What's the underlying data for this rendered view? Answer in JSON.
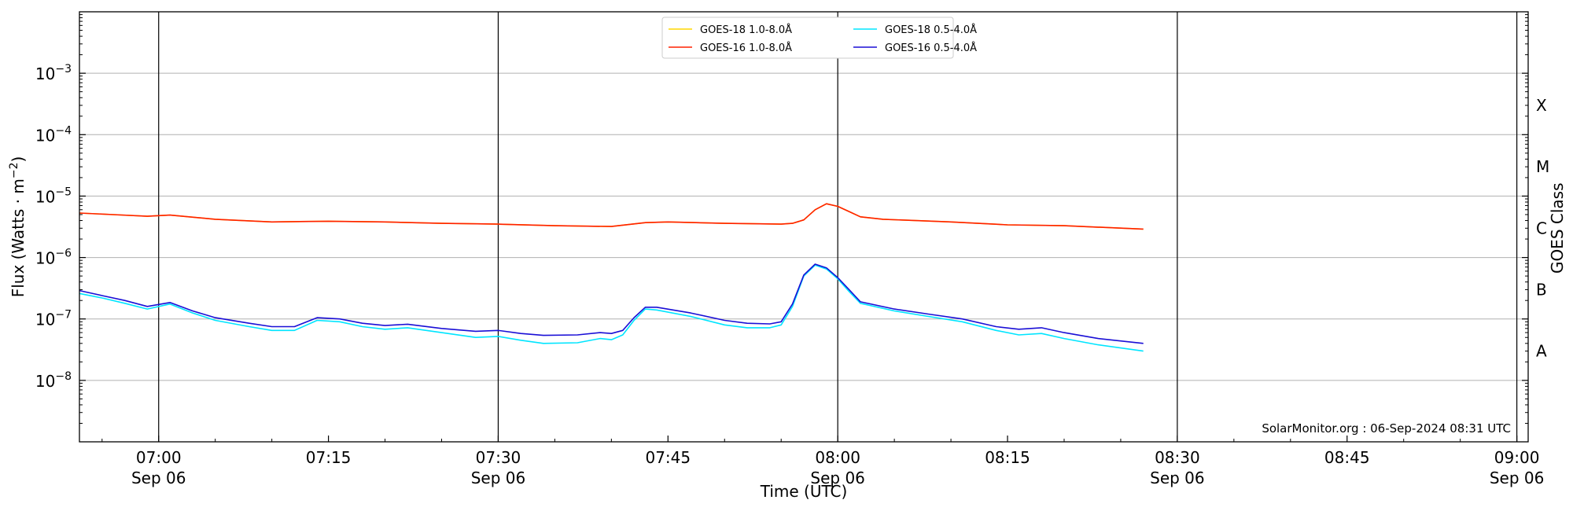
{
  "chart_data": {
    "type": "line",
    "title": "",
    "xlabel": "Time (UTC)",
    "ylabel": "Flux (Watts · m",
    "ylabel_sup": "−2",
    "ylabel_close": ")",
    "right_label": "GOES Class",
    "credit": "SolarMonitor.org : 06-Sep-2024 08:31 UTC",
    "log_y": true,
    "xlim": [
      "06:53",
      "09:01"
    ],
    "ylim": [
      1e-09,
      0.01
    ],
    "grid": "horizontal at decades",
    "legend_position": "top-center",
    "x_ticks": [
      {
        "time": "07:00",
        "label": "07:00",
        "sub": "Sep 06"
      },
      {
        "time": "07:15",
        "label": "07:15",
        "sub": ""
      },
      {
        "time": "07:30",
        "label": "07:30",
        "sub": "Sep 06"
      },
      {
        "time": "07:45",
        "label": "07:45",
        "sub": ""
      },
      {
        "time": "08:00",
        "label": "08:00",
        "sub": "Sep 06"
      },
      {
        "time": "08:15",
        "label": "08:15",
        "sub": ""
      },
      {
        "time": "08:30",
        "label": "08:30",
        "sub": "Sep 06"
      },
      {
        "time": "08:45",
        "label": "08:45",
        "sub": ""
      },
      {
        "time": "09:00",
        "label": "09:00",
        "sub": "Sep 06"
      }
    ],
    "vertical_lines": [
      "07:00",
      "07:30",
      "08:00",
      "08:30",
      "09:00"
    ],
    "y_ticks": [
      {
        "value": 1e-08,
        "base": "10",
        "exp": "−8"
      },
      {
        "value": 1e-07,
        "base": "10",
        "exp": "−7"
      },
      {
        "value": 1e-06,
        "base": "10",
        "exp": "−6"
      },
      {
        "value": 1e-05,
        "base": "10",
        "exp": "−5"
      },
      {
        "value": 0.0001,
        "base": "10",
        "exp": "−4"
      },
      {
        "value": 0.001,
        "base": "10",
        "exp": "−3"
      }
    ],
    "goes_classes": [
      {
        "label": "A",
        "value": 3e-08
      },
      {
        "label": "B",
        "value": 3e-07
      },
      {
        "label": "C",
        "value": 3e-06
      },
      {
        "label": "M",
        "value": 3e-05
      },
      {
        "label": "X",
        "value": 0.0003
      }
    ],
    "series": [
      {
        "name": "GOES-18 1.0-8.0Å",
        "color": "#ffd700",
        "points": [
          [
            "06:53",
            5.3e-06
          ],
          [
            "06:56",
            5e-06
          ],
          [
            "06:59",
            4.7e-06
          ],
          [
            "07:01",
            4.9e-06
          ],
          [
            "07:05",
            4.2e-06
          ],
          [
            "07:10",
            3.8e-06
          ],
          [
            "07:15",
            3.9e-06
          ],
          [
            "07:20",
            3.8e-06
          ],
          [
            "07:25",
            3.6e-06
          ],
          [
            "07:30",
            3.5e-06
          ],
          [
            "07:35",
            3.3e-06
          ],
          [
            "07:40",
            3.2e-06
          ],
          [
            "07:43",
            3.7e-06
          ],
          [
            "07:45",
            3.8e-06
          ],
          [
            "07:50",
            3.6e-06
          ],
          [
            "07:55",
            3.5e-06
          ],
          [
            "07:56",
            3.6e-06
          ],
          [
            "07:57",
            4.1e-06
          ],
          [
            "07:58",
            6e-06
          ],
          [
            "07:59",
            7.5e-06
          ],
          [
            "08:00",
            6.8e-06
          ],
          [
            "08:01",
            5.6e-06
          ],
          [
            "08:02",
            4.6e-06
          ],
          [
            "08:04",
            4.2e-06
          ],
          [
            "08:10",
            3.8e-06
          ],
          [
            "08:15",
            3.4e-06
          ],
          [
            "08:20",
            3.3e-06
          ],
          [
            "08:27",
            2.9e-06
          ]
        ]
      },
      {
        "name": "GOES-16 1.0-8.0Å",
        "color": "#ff2000",
        "points": [
          [
            "06:53",
            5.3e-06
          ],
          [
            "06:56",
            5e-06
          ],
          [
            "06:59",
            4.7e-06
          ],
          [
            "07:01",
            4.9e-06
          ],
          [
            "07:05",
            4.2e-06
          ],
          [
            "07:10",
            3.8e-06
          ],
          [
            "07:15",
            3.9e-06
          ],
          [
            "07:20",
            3.8e-06
          ],
          [
            "07:25",
            3.6e-06
          ],
          [
            "07:30",
            3.5e-06
          ],
          [
            "07:35",
            3.3e-06
          ],
          [
            "07:40",
            3.2e-06
          ],
          [
            "07:43",
            3.7e-06
          ],
          [
            "07:45",
            3.8e-06
          ],
          [
            "07:50",
            3.6e-06
          ],
          [
            "07:55",
            3.5e-06
          ],
          [
            "07:56",
            3.6e-06
          ],
          [
            "07:57",
            4.1e-06
          ],
          [
            "07:58",
            6e-06
          ],
          [
            "07:59",
            7.5e-06
          ],
          [
            "08:00",
            6.8e-06
          ],
          [
            "08:01",
            5.6e-06
          ],
          [
            "08:02",
            4.6e-06
          ],
          [
            "08:04",
            4.2e-06
          ],
          [
            "08:10",
            3.8e-06
          ],
          [
            "08:15",
            3.4e-06
          ],
          [
            "08:20",
            3.3e-06
          ],
          [
            "08:27",
            2.9e-06
          ]
        ]
      },
      {
        "name": "GOES-18 0.5-4.0Å",
        "color": "#00e5ff",
        "points": [
          [
            "06:53",
            2.6e-07
          ],
          [
            "06:55",
            2.2e-07
          ],
          [
            "06:57",
            1.8e-07
          ],
          [
            "06:59",
            1.45e-07
          ],
          [
            "07:01",
            1.75e-07
          ],
          [
            "07:03",
            1.25e-07
          ],
          [
            "07:05",
            9.5e-08
          ],
          [
            "07:08",
            7.5e-08
          ],
          [
            "07:10",
            6.5e-08
          ],
          [
            "07:12",
            6.5e-08
          ],
          [
            "07:14",
            9.5e-08
          ],
          [
            "07:16",
            9e-08
          ],
          [
            "07:18",
            7.5e-08
          ],
          [
            "07:20",
            6.8e-08
          ],
          [
            "07:22",
            7.2e-08
          ],
          [
            "07:25",
            6e-08
          ],
          [
            "07:28",
            5e-08
          ],
          [
            "07:30",
            5.2e-08
          ],
          [
            "07:32",
            4.5e-08
          ],
          [
            "07:34",
            4e-08
          ],
          [
            "07:37",
            4.1e-08
          ],
          [
            "07:39",
            4.8e-08
          ],
          [
            "07:40",
            4.6e-08
          ],
          [
            "07:41",
            5.5e-08
          ],
          [
            "07:42",
            9.5e-08
          ],
          [
            "07:43",
            1.45e-07
          ],
          [
            "07:44",
            1.4e-07
          ],
          [
            "07:47",
            1.1e-07
          ],
          [
            "07:50",
            8e-08
          ],
          [
            "07:52",
            7.2e-08
          ],
          [
            "07:54",
            7.2e-08
          ],
          [
            "07:55",
            8e-08
          ],
          [
            "07:56",
            1.6e-07
          ],
          [
            "07:57",
            5e-07
          ],
          [
            "07:58",
            7.5e-07
          ],
          [
            "07:59",
            6.5e-07
          ],
          [
            "08:00",
            4.5e-07
          ],
          [
            "08:01",
            2.8e-07
          ],
          [
            "08:02",
            1.8e-07
          ],
          [
            "08:05",
            1.35e-07
          ],
          [
            "08:08",
            1.1e-07
          ],
          [
            "08:11",
            9e-08
          ],
          [
            "08:14",
            6.5e-08
          ],
          [
            "08:16",
            5.5e-08
          ],
          [
            "08:18",
            5.8e-08
          ],
          [
            "08:20",
            4.8e-08
          ],
          [
            "08:23",
            3.8e-08
          ],
          [
            "08:27",
            3e-08
          ]
        ]
      },
      {
        "name": "GOES-16 0.5-4.0Å",
        "color": "#1a0fd6",
        "points": [
          [
            "06:53",
            2.9e-07
          ],
          [
            "06:55",
            2.4e-07
          ],
          [
            "06:57",
            2e-07
          ],
          [
            "06:59",
            1.6e-07
          ],
          [
            "07:01",
            1.85e-07
          ],
          [
            "07:03",
            1.35e-07
          ],
          [
            "07:05",
            1.05e-07
          ],
          [
            "07:08",
            8.5e-08
          ],
          [
            "07:10",
            7.5e-08
          ],
          [
            "07:12",
            7.5e-08
          ],
          [
            "07:14",
            1.05e-07
          ],
          [
            "07:16",
            1e-07
          ],
          [
            "07:18",
            8.5e-08
          ],
          [
            "07:20",
            7.8e-08
          ],
          [
            "07:22",
            8.2e-08
          ],
          [
            "07:25",
            7e-08
          ],
          [
            "07:28",
            6.3e-08
          ],
          [
            "07:30",
            6.5e-08
          ],
          [
            "07:32",
            5.8e-08
          ],
          [
            "07:34",
            5.4e-08
          ],
          [
            "07:37",
            5.5e-08
          ],
          [
            "07:39",
            6e-08
          ],
          [
            "07:40",
            5.8e-08
          ],
          [
            "07:41",
            6.5e-08
          ],
          [
            "07:42",
            1.05e-07
          ],
          [
            "07:43",
            1.55e-07
          ],
          [
            "07:44",
            1.55e-07
          ],
          [
            "07:47",
            1.25e-07
          ],
          [
            "07:50",
            9.5e-08
          ],
          [
            "07:52",
            8.5e-08
          ],
          [
            "07:54",
            8.3e-08
          ],
          [
            "07:55",
            9e-08
          ],
          [
            "07:56",
            1.75e-07
          ],
          [
            "07:57",
            5.2e-07
          ],
          [
            "07:58",
            7.8e-07
          ],
          [
            "07:59",
            6.8e-07
          ],
          [
            "08:00",
            4.7e-07
          ],
          [
            "08:01",
            3e-07
          ],
          [
            "08:02",
            1.9e-07
          ],
          [
            "08:05",
            1.45e-07
          ],
          [
            "08:08",
            1.2e-07
          ],
          [
            "08:11",
            1e-07
          ],
          [
            "08:14",
            7.5e-08
          ],
          [
            "08:16",
            6.8e-08
          ],
          [
            "08:18",
            7.2e-08
          ],
          [
            "08:20",
            6e-08
          ],
          [
            "08:23",
            4.8e-08
          ],
          [
            "08:27",
            4e-08
          ]
        ]
      }
    ],
    "legend_layout": [
      [
        "GOES-18 1.0-8.0Å",
        "GOES-16 1.0-8.0Å"
      ],
      [
        "GOES-18 0.5-4.0Å",
        "GOES-16 0.5-4.0Å"
      ]
    ]
  }
}
